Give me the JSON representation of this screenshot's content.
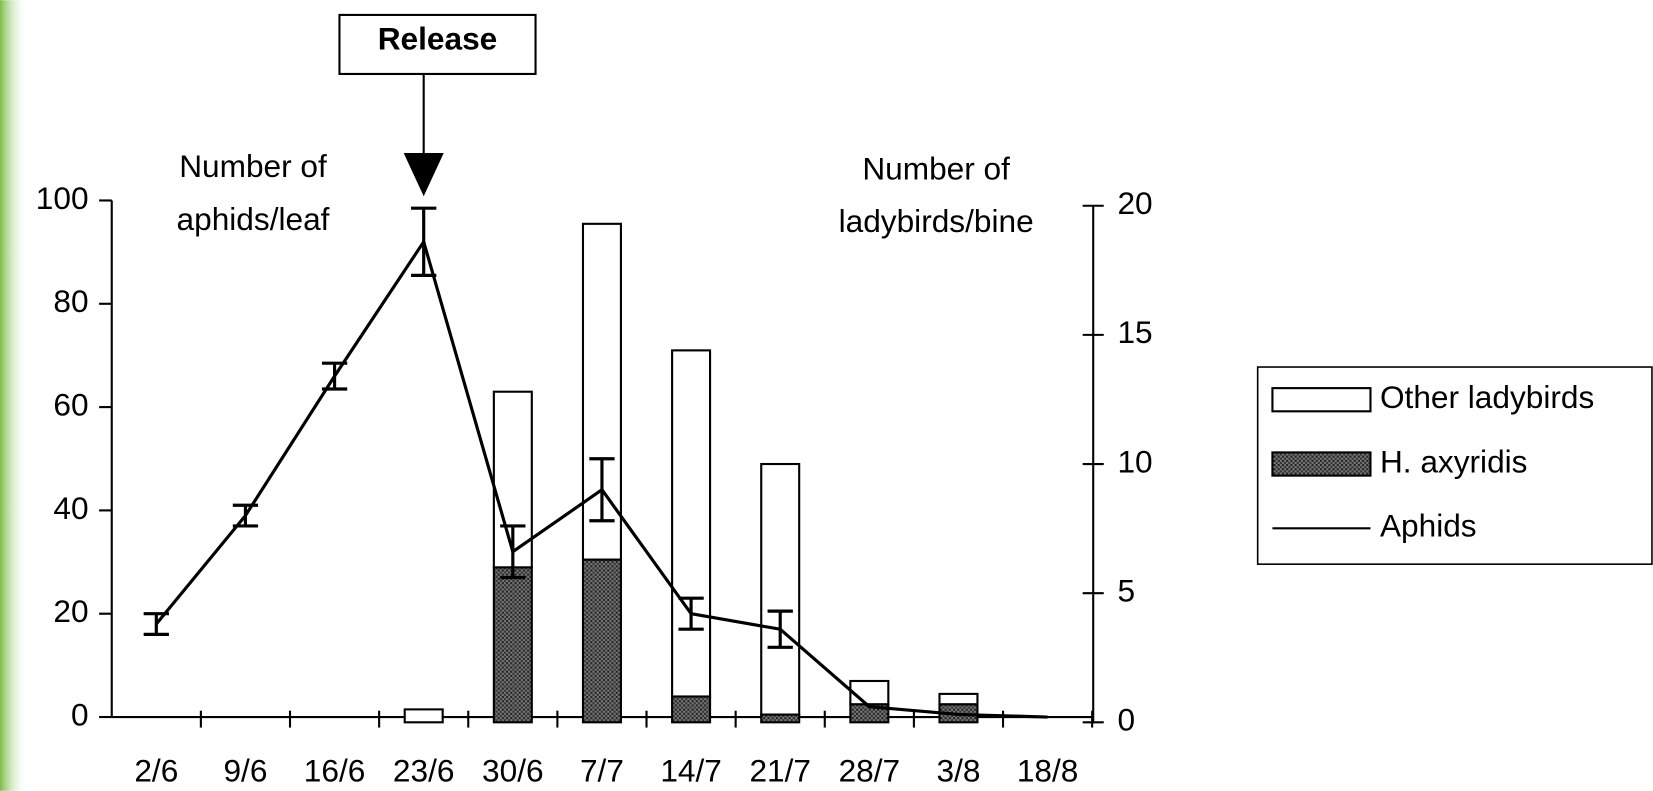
{
  "chart_data": {
    "type": "bar",
    "annotation": "Release",
    "annotation_category": 3,
    "ylabel": [
      "Number of",
      "aphids/leaf"
    ],
    "y2label": [
      "Number of",
      "ladybirds/bine"
    ],
    "categories": [
      "2/6",
      "9/6",
      "16/6",
      "23/6",
      "30/6",
      "7/7",
      "14/7",
      "21/7",
      "28/7",
      "3/8",
      "18/8"
    ],
    "series": [
      {
        "name": "Other ladybirds",
        "type": "bar",
        "axis": "y2",
        "color": "#ffffff",
        "values": [
          0,
          0,
          0,
          0.5,
          6.8,
          13,
          13.4,
          9.7,
          0.9,
          0.4,
          0
        ]
      },
      {
        "name": "H. axyridis",
        "type": "bar",
        "axis": "y2",
        "color": "#555555",
        "values": [
          0,
          0,
          0,
          0,
          6,
          6.3,
          1,
          0.3,
          0.7,
          0.7,
          0
        ]
      },
      {
        "name": "Aphids",
        "type": "line",
        "axis": "y",
        "color": "#000000",
        "values": [
          18,
          39,
          66,
          92,
          32,
          44,
          20,
          17,
          2,
          0.5,
          0
        ],
        "errors": [
          2,
          2,
          2.5,
          6.5,
          5,
          6,
          3,
          3.5,
          null,
          null,
          null
        ]
      }
    ],
    "ylim": [
      0,
      100
    ],
    "yticks": [
      0,
      20,
      40,
      60,
      80,
      100
    ],
    "y2lim": [
      0,
      20
    ],
    "y2ticks": [
      0,
      5,
      10,
      15,
      20
    ],
    "legend": "right"
  }
}
